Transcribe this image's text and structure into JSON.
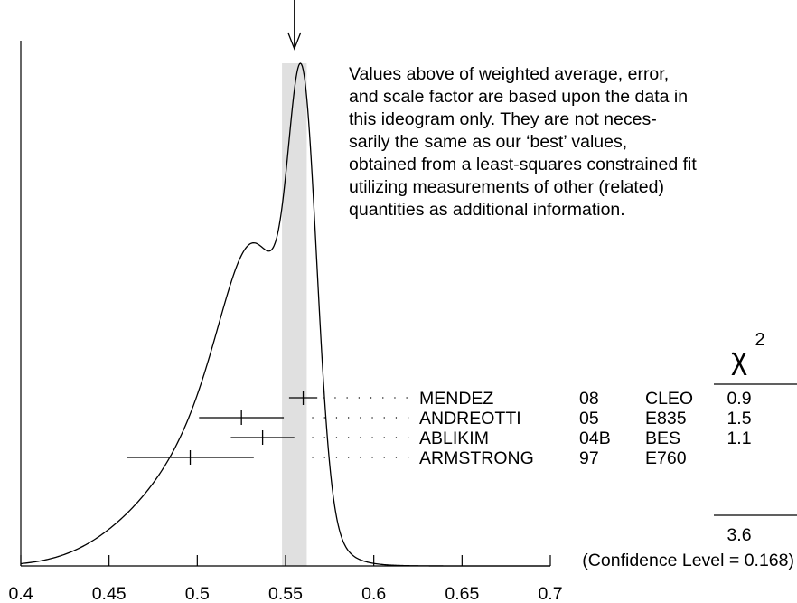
{
  "note": {
    "lines": [
      "Values above of weighted average, error,",
      "and scale factor are based upon the data in",
      "this ideogram only.  They are not neces-",
      "sarily the same as our ‘best’ values,",
      "obtained from a least-squares constrained fit",
      "utilizing measurements of other (related)",
      "quantities as additional information."
    ]
  },
  "chart_data": {
    "type": "ideogram",
    "xlim": [
      0.4,
      0.7
    ],
    "x_ticks": [
      "0.4",
      "0.45",
      "0.5",
      "0.55",
      "0.6",
      "0.65",
      "0.7"
    ],
    "x_tick_values": [
      0.4,
      0.45,
      0.5,
      0.55,
      0.6,
      0.65,
      0.7
    ],
    "weighted_average_band": [
      0.548,
      0.562
    ],
    "weighted_average_arrow": 0.555,
    "chi2_header": "χ",
    "chi2_superscript": "2",
    "measurements": [
      {
        "author": "MENDEZ",
        "year": "08",
        "experiment": "CLEO",
        "value": 0.56,
        "err_low": 0.008,
        "err_high": 0.008,
        "chi2": "0.9"
      },
      {
        "author": "ANDREOTTI",
        "year": "05",
        "experiment": "E835",
        "value": 0.525,
        "err_low": 0.024,
        "err_high": 0.024,
        "chi2": "1.5"
      },
      {
        "author": "ABLIKIM",
        "year": "04B",
        "experiment": "BES",
        "value": 0.537,
        "err_low": 0.018,
        "err_high": 0.018,
        "chi2": "1.1"
      },
      {
        "author": "ARMSTRONG",
        "year": "97",
        "experiment": "E760",
        "value": 0.496,
        "err_low": 0.036,
        "err_high": 0.036,
        "chi2": ""
      }
    ],
    "chi2_total": "3.6",
    "confidence_level": "(Confidence Level = 0.168)",
    "colors": {
      "band": "#e0e0e0",
      "line": "#000000"
    }
  }
}
